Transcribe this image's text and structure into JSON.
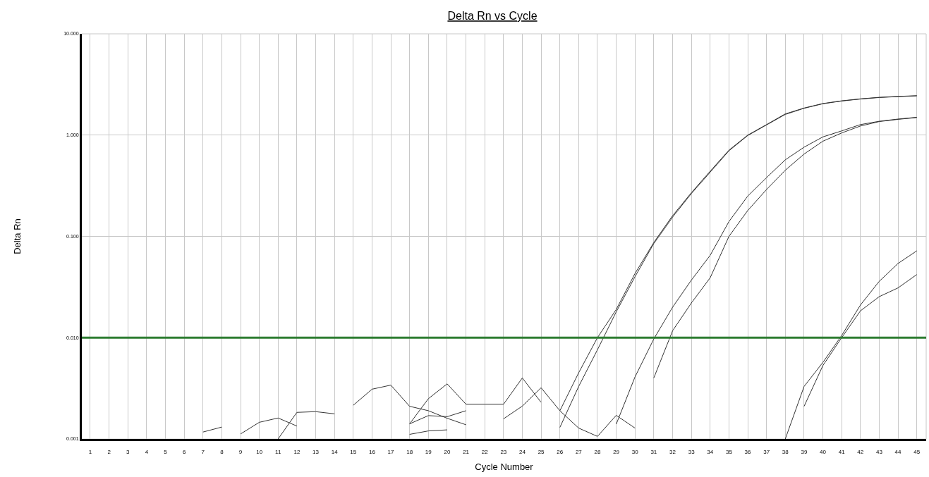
{
  "chart_data": {
    "type": "line",
    "title": "Delta Rn vs Cycle",
    "xlabel": "Cycle Number",
    "ylabel": "Delta Rn",
    "log": "y",
    "grid": true,
    "marker": "none",
    "line_style": "solid",
    "xlim": [
      0.55,
      45.5
    ],
    "xticks": [
      1,
      2,
      3,
      4,
      5,
      6,
      7,
      8,
      9,
      10,
      11,
      12,
      13,
      14,
      15,
      16,
      17,
      18,
      19,
      20,
      21,
      22,
      23,
      24,
      25,
      26,
      27,
      28,
      29,
      30,
      31,
      32,
      33,
      34,
      35,
      36,
      37,
      38,
      39,
      40,
      41,
      42,
      43,
      44,
      45
    ],
    "ylim": [
      0.001,
      10
    ],
    "yticks": [
      {
        "value": 10,
        "label": "10.000"
      },
      {
        "value": 1,
        "label": "1.000"
      },
      {
        "value": 0.1,
        "label": "0.100"
      },
      {
        "value": 0.01,
        "label": "0.010"
      },
      {
        "value": 0.001,
        "label": "0.001"
      }
    ],
    "ref_lines": [
      {
        "axis": "y",
        "value": 0.01,
        "color": "#2e7d32"
      }
    ],
    "series": [
      {
        "color": "#333333",
        "x": [
          26,
          27,
          28,
          29,
          30,
          31,
          32,
          33,
          34,
          35,
          36,
          37,
          38,
          39,
          40,
          41,
          42,
          43,
          44,
          45
        ],
        "values": [
          0.0019,
          0.0045,
          0.01,
          0.019,
          0.043,
          0.087,
          0.16,
          0.27,
          0.44,
          0.71,
          1.0,
          1.27,
          1.62,
          1.85,
          2.05,
          2.18,
          2.28,
          2.36,
          2.41,
          2.45
        ]
      },
      {
        "color": "#333333",
        "x": [
          26,
          27,
          28,
          29,
          30,
          31,
          32,
          33,
          34,
          35,
          36,
          37,
          38,
          39,
          40,
          41,
          42,
          43,
          44,
          45
        ],
        "values": [
          0.0013,
          0.0033,
          0.0076,
          0.018,
          0.04,
          0.085,
          0.155,
          0.265,
          0.43,
          0.7,
          0.99,
          1.26,
          1.6,
          1.84,
          2.04,
          2.17,
          2.27,
          2.35,
          2.4,
          2.44
        ]
      },
      {
        "color": "#333333",
        "x": [
          29,
          30,
          31,
          32,
          33,
          34,
          35,
          36,
          37,
          38,
          39,
          40,
          41,
          42,
          43,
          44,
          45
        ],
        "values": [
          0.0014,
          0.0041,
          0.0097,
          0.02,
          0.037,
          0.065,
          0.14,
          0.25,
          0.38,
          0.57,
          0.76,
          0.96,
          1.1,
          1.27,
          1.37,
          1.44,
          1.5
        ]
      },
      {
        "color": "#333333",
        "x": [
          31,
          32,
          33,
          34,
          35,
          36,
          37,
          38,
          39,
          40,
          41,
          42,
          43,
          44,
          45
        ],
        "values": [
          0.004,
          0.0117,
          0.022,
          0.039,
          0.1,
          0.18,
          0.29,
          0.45,
          0.65,
          0.87,
          1.05,
          1.23,
          1.36,
          1.43,
          1.49
        ]
      },
      {
        "color": "#333333",
        "x": [
          38,
          39,
          40,
          41,
          42,
          43,
          44,
          45
        ],
        "values": [
          0.001,
          0.0033,
          0.0057,
          0.0105,
          0.021,
          0.036,
          0.054,
          0.072
        ]
      },
      {
        "color": "#333333",
        "x": [
          39,
          40,
          41,
          42,
          43,
          44,
          45
        ],
        "values": [
          0.0021,
          0.0053,
          0.01,
          0.0184,
          0.0254,
          0.031,
          0.042
        ]
      },
      {
        "color": "#333333",
        "x": [
          7,
          8
        ],
        "values": [
          0.00117,
          0.00131
        ]
      },
      {
        "color": "#333333",
        "x": [
          9,
          10,
          11,
          12
        ],
        "values": [
          0.00112,
          0.00146,
          0.00161,
          0.00134
        ]
      },
      {
        "color": "#333333",
        "x": [
          11,
          12,
          13,
          14
        ],
        "values": [
          0.001,
          0.00183,
          0.00186,
          0.00177
        ]
      },
      {
        "color": "#333333",
        "x": [
          15,
          16,
          17,
          18,
          19,
          20,
          21
        ],
        "values": [
          0.00215,
          0.0031,
          0.0034,
          0.0021,
          0.0019,
          0.0016,
          0.00138
        ]
      },
      {
        "color": "#333333",
        "x": [
          18,
          19,
          20,
          21,
          22,
          23,
          24,
          25
        ],
        "values": [
          0.00141,
          0.0025,
          0.0035,
          0.0022,
          0.0022,
          0.0022,
          0.004,
          0.0023
        ]
      },
      {
        "color": "#333333",
        "x": [
          18,
          19,
          20,
          21
        ],
        "values": [
          0.00141,
          0.0017,
          0.00166,
          0.0019
        ]
      },
      {
        "color": "#333333",
        "x": [
          18,
          19,
          20
        ],
        "values": [
          0.00111,
          0.0012,
          0.00123
        ]
      },
      {
        "color": "#333333",
        "x": [
          23,
          24,
          25,
          26,
          27,
          28,
          29,
          30
        ],
        "values": [
          0.00158,
          0.00211,
          0.0032,
          0.0019,
          0.00128,
          0.00106,
          0.00171,
          0.00128
        ]
      }
    ]
  }
}
